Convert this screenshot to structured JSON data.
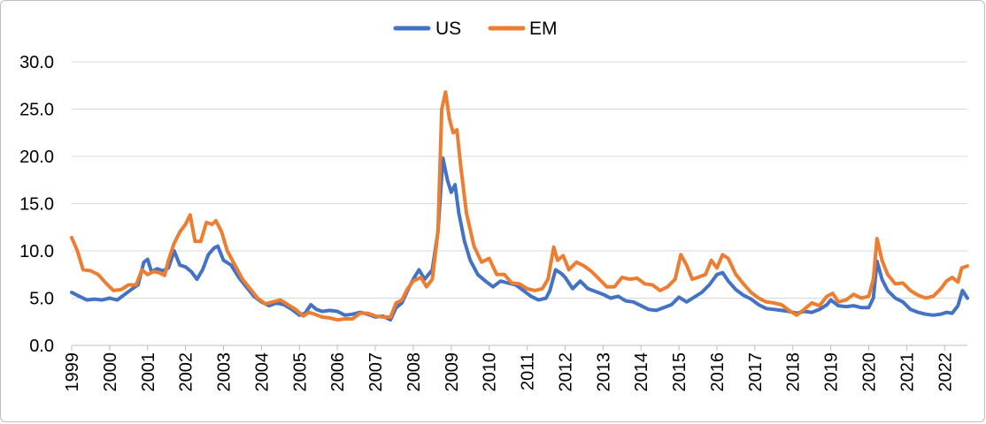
{
  "chart_data": {
    "type": "line",
    "title": "",
    "xlabel": "",
    "ylabel": "",
    "ylim": [
      0,
      30
    ],
    "y_ticks": [
      "0.0",
      "5.0",
      "10.0",
      "15.0",
      "20.0",
      "25.0",
      "30.0"
    ],
    "x_ticks": [
      "1999",
      "2000",
      "2001",
      "2002",
      "2003",
      "2004",
      "2005",
      "2006",
      "2007",
      "2008",
      "2009",
      "2010",
      "2011",
      "2012",
      "2013",
      "2014",
      "2015",
      "2016",
      "2017",
      "2018",
      "2019",
      "2020",
      "2021",
      "2022"
    ],
    "xlim": [
      1999.0,
      2022.6
    ],
    "grid": "horizontal",
    "legend_position": "top-center",
    "series": [
      {
        "name": "US",
        "color": "#4472C4",
        "points": [
          [
            1999.0,
            5.6
          ],
          [
            1999.2,
            5.2
          ],
          [
            1999.4,
            4.8
          ],
          [
            1999.6,
            4.9
          ],
          [
            1999.8,
            4.8
          ],
          [
            2000.0,
            5.0
          ],
          [
            2000.2,
            4.8
          ],
          [
            2000.4,
            5.4
          ],
          [
            2000.6,
            6.0
          ],
          [
            2000.75,
            6.4
          ],
          [
            2000.9,
            8.8
          ],
          [
            2001.0,
            9.1
          ],
          [
            2001.1,
            7.8
          ],
          [
            2001.25,
            8.1
          ],
          [
            2001.4,
            7.9
          ],
          [
            2001.55,
            8.2
          ],
          [
            2001.7,
            10.0
          ],
          [
            2001.85,
            8.5
          ],
          [
            2002.0,
            8.3
          ],
          [
            2002.15,
            7.8
          ],
          [
            2002.3,
            7.0
          ],
          [
            2002.45,
            8.0
          ],
          [
            2002.6,
            9.6
          ],
          [
            2002.75,
            10.3
          ],
          [
            2002.85,
            10.5
          ],
          [
            2003.0,
            9.0
          ],
          [
            2003.2,
            8.5
          ],
          [
            2003.4,
            7.2
          ],
          [
            2003.6,
            6.2
          ],
          [
            2003.8,
            5.2
          ],
          [
            2004.0,
            4.6
          ],
          [
            2004.2,
            4.2
          ],
          [
            2004.4,
            4.5
          ],
          [
            2004.6,
            4.3
          ],
          [
            2004.8,
            3.8
          ],
          [
            2005.0,
            3.2
          ],
          [
            2005.15,
            3.4
          ],
          [
            2005.3,
            4.3
          ],
          [
            2005.45,
            3.8
          ],
          [
            2005.6,
            3.6
          ],
          [
            2005.8,
            3.7
          ],
          [
            2006.0,
            3.6
          ],
          [
            2006.2,
            3.2
          ],
          [
            2006.4,
            3.3
          ],
          [
            2006.6,
            3.5
          ],
          [
            2006.8,
            3.3
          ],
          [
            2007.0,
            3.0
          ],
          [
            2007.2,
            3.1
          ],
          [
            2007.4,
            2.7
          ],
          [
            2007.55,
            4.0
          ],
          [
            2007.7,
            4.5
          ],
          [
            2007.85,
            5.8
          ],
          [
            2008.0,
            7.0
          ],
          [
            2008.15,
            8.0
          ],
          [
            2008.3,
            7.0
          ],
          [
            2008.5,
            8.0
          ],
          [
            2008.65,
            12.0
          ],
          [
            2008.78,
            19.8
          ],
          [
            2008.9,
            17.5
          ],
          [
            2009.0,
            16.2
          ],
          [
            2009.1,
            17.0
          ],
          [
            2009.2,
            14.0
          ],
          [
            2009.35,
            11.0
          ],
          [
            2009.5,
            9.0
          ],
          [
            2009.7,
            7.5
          ],
          [
            2009.9,
            6.8
          ],
          [
            2010.1,
            6.2
          ],
          [
            2010.3,
            6.8
          ],
          [
            2010.5,
            6.6
          ],
          [
            2010.7,
            6.4
          ],
          [
            2010.9,
            5.8
          ],
          [
            2011.1,
            5.2
          ],
          [
            2011.3,
            4.8
          ],
          [
            2011.5,
            5.0
          ],
          [
            2011.6,
            5.8
          ],
          [
            2011.75,
            8.0
          ],
          [
            2011.9,
            7.6
          ],
          [
            2012.0,
            7.2
          ],
          [
            2012.2,
            6.0
          ],
          [
            2012.4,
            6.8
          ],
          [
            2012.6,
            6.0
          ],
          [
            2012.8,
            5.7
          ],
          [
            2013.0,
            5.4
          ],
          [
            2013.2,
            5.0
          ],
          [
            2013.4,
            5.2
          ],
          [
            2013.6,
            4.7
          ],
          [
            2013.8,
            4.6
          ],
          [
            2014.0,
            4.2
          ],
          [
            2014.2,
            3.8
          ],
          [
            2014.4,
            3.7
          ],
          [
            2014.6,
            4.0
          ],
          [
            2014.8,
            4.3
          ],
          [
            2015.0,
            5.1
          ],
          [
            2015.2,
            4.6
          ],
          [
            2015.4,
            5.1
          ],
          [
            2015.6,
            5.6
          ],
          [
            2015.8,
            6.4
          ],
          [
            2016.0,
            7.5
          ],
          [
            2016.15,
            7.7
          ],
          [
            2016.3,
            6.8
          ],
          [
            2016.5,
            5.9
          ],
          [
            2016.7,
            5.3
          ],
          [
            2016.9,
            4.9
          ],
          [
            2017.1,
            4.3
          ],
          [
            2017.3,
            3.9
          ],
          [
            2017.5,
            3.8
          ],
          [
            2017.7,
            3.7
          ],
          [
            2017.9,
            3.6
          ],
          [
            2018.1,
            3.4
          ],
          [
            2018.3,
            3.6
          ],
          [
            2018.5,
            3.5
          ],
          [
            2018.7,
            3.8
          ],
          [
            2018.9,
            4.3
          ],
          [
            2019.0,
            4.8
          ],
          [
            2019.2,
            4.2
          ],
          [
            2019.4,
            4.1
          ],
          [
            2019.6,
            4.2
          ],
          [
            2019.8,
            4.0
          ],
          [
            2020.0,
            4.0
          ],
          [
            2020.12,
            5.0
          ],
          [
            2020.22,
            8.9
          ],
          [
            2020.35,
            7.0
          ],
          [
            2020.5,
            5.8
          ],
          [
            2020.7,
            5.0
          ],
          [
            2020.9,
            4.6
          ],
          [
            2021.1,
            3.8
          ],
          [
            2021.3,
            3.5
          ],
          [
            2021.5,
            3.3
          ],
          [
            2021.7,
            3.2
          ],
          [
            2021.9,
            3.3
          ],
          [
            2022.05,
            3.5
          ],
          [
            2022.2,
            3.4
          ],
          [
            2022.35,
            4.2
          ],
          [
            2022.47,
            5.8
          ],
          [
            2022.6,
            5.0
          ]
        ]
      },
      {
        "name": "EM",
        "color": "#ED7D31",
        "points": [
          [
            1999.0,
            11.4
          ],
          [
            1999.15,
            10.0
          ],
          [
            1999.3,
            8.0
          ],
          [
            1999.5,
            7.9
          ],
          [
            1999.7,
            7.5
          ],
          [
            1999.9,
            6.6
          ],
          [
            2000.1,
            5.8
          ],
          [
            2000.3,
            5.9
          ],
          [
            2000.5,
            6.4
          ],
          [
            2000.7,
            6.4
          ],
          [
            2000.85,
            8.0
          ],
          [
            2001.0,
            7.5
          ],
          [
            2001.15,
            7.8
          ],
          [
            2001.3,
            7.7
          ],
          [
            2001.45,
            7.4
          ],
          [
            2001.55,
            9.0
          ],
          [
            2001.7,
            10.8
          ],
          [
            2001.85,
            12.0
          ],
          [
            2002.0,
            12.8
          ],
          [
            2002.12,
            13.8
          ],
          [
            2002.25,
            11.0
          ],
          [
            2002.4,
            11.0
          ],
          [
            2002.55,
            13.0
          ],
          [
            2002.7,
            12.8
          ],
          [
            2002.8,
            13.2
          ],
          [
            2002.95,
            12.0
          ],
          [
            2003.1,
            10.0
          ],
          [
            2003.3,
            8.5
          ],
          [
            2003.5,
            7.0
          ],
          [
            2003.7,
            6.0
          ],
          [
            2003.9,
            5.0
          ],
          [
            2004.1,
            4.4
          ],
          [
            2004.3,
            4.6
          ],
          [
            2004.5,
            4.8
          ],
          [
            2004.7,
            4.3
          ],
          [
            2004.9,
            3.8
          ],
          [
            2005.1,
            3.1
          ],
          [
            2005.25,
            3.5
          ],
          [
            2005.4,
            3.3
          ],
          [
            2005.6,
            3.0
          ],
          [
            2005.8,
            2.9
          ],
          [
            2006.0,
            2.7
          ],
          [
            2006.2,
            2.8
          ],
          [
            2006.4,
            2.8
          ],
          [
            2006.6,
            3.4
          ],
          [
            2006.8,
            3.4
          ],
          [
            2007.0,
            3.1
          ],
          [
            2007.2,
            3.0
          ],
          [
            2007.4,
            3.0
          ],
          [
            2007.55,
            4.5
          ],
          [
            2007.7,
            4.8
          ],
          [
            2007.85,
            6.0
          ],
          [
            2008.0,
            6.8
          ],
          [
            2008.2,
            7.2
          ],
          [
            2008.35,
            6.2
          ],
          [
            2008.5,
            7.0
          ],
          [
            2008.65,
            12.0
          ],
          [
            2008.75,
            25.0
          ],
          [
            2008.85,
            26.8
          ],
          [
            2008.95,
            24.0
          ],
          [
            2009.05,
            22.5
          ],
          [
            2009.15,
            22.8
          ],
          [
            2009.25,
            19.0
          ],
          [
            2009.4,
            14.0
          ],
          [
            2009.6,
            10.5
          ],
          [
            2009.8,
            8.8
          ],
          [
            2010.0,
            9.2
          ],
          [
            2010.2,
            7.5
          ],
          [
            2010.4,
            7.5
          ],
          [
            2010.6,
            6.6
          ],
          [
            2010.8,
            6.5
          ],
          [
            2011.0,
            6.0
          ],
          [
            2011.2,
            5.8
          ],
          [
            2011.4,
            6.0
          ],
          [
            2011.55,
            7.0
          ],
          [
            2011.7,
            10.4
          ],
          [
            2011.8,
            9.0
          ],
          [
            2011.95,
            9.5
          ],
          [
            2012.1,
            8.0
          ],
          [
            2012.3,
            8.8
          ],
          [
            2012.5,
            8.4
          ],
          [
            2012.7,
            7.8
          ],
          [
            2012.9,
            7.0
          ],
          [
            2013.1,
            6.2
          ],
          [
            2013.3,
            6.2
          ],
          [
            2013.5,
            7.2
          ],
          [
            2013.7,
            7.0
          ],
          [
            2013.9,
            7.1
          ],
          [
            2014.1,
            6.5
          ],
          [
            2014.3,
            6.4
          ],
          [
            2014.5,
            5.8
          ],
          [
            2014.7,
            6.2
          ],
          [
            2014.9,
            7.0
          ],
          [
            2015.05,
            9.6
          ],
          [
            2015.2,
            8.5
          ],
          [
            2015.35,
            7.0
          ],
          [
            2015.5,
            7.2
          ],
          [
            2015.7,
            7.5
          ],
          [
            2015.85,
            9.0
          ],
          [
            2016.0,
            8.2
          ],
          [
            2016.15,
            9.6
          ],
          [
            2016.3,
            9.2
          ],
          [
            2016.5,
            7.5
          ],
          [
            2016.7,
            6.5
          ],
          [
            2016.9,
            5.6
          ],
          [
            2017.1,
            5.0
          ],
          [
            2017.3,
            4.6
          ],
          [
            2017.5,
            4.5
          ],
          [
            2017.7,
            4.3
          ],
          [
            2017.9,
            3.7
          ],
          [
            2018.1,
            3.2
          ],
          [
            2018.3,
            3.8
          ],
          [
            2018.5,
            4.5
          ],
          [
            2018.7,
            4.2
          ],
          [
            2018.9,
            5.2
          ],
          [
            2019.05,
            5.5
          ],
          [
            2019.2,
            4.6
          ],
          [
            2019.4,
            4.8
          ],
          [
            2019.6,
            5.4
          ],
          [
            2019.8,
            5.0
          ],
          [
            2020.0,
            5.2
          ],
          [
            2020.12,
            7.0
          ],
          [
            2020.22,
            11.3
          ],
          [
            2020.35,
            9.0
          ],
          [
            2020.5,
            7.5
          ],
          [
            2020.7,
            6.5
          ],
          [
            2020.9,
            6.6
          ],
          [
            2021.1,
            5.8
          ],
          [
            2021.3,
            5.3
          ],
          [
            2021.5,
            5.0
          ],
          [
            2021.7,
            5.2
          ],
          [
            2021.9,
            6.0
          ],
          [
            2022.05,
            6.8
          ],
          [
            2022.2,
            7.2
          ],
          [
            2022.35,
            6.7
          ],
          [
            2022.45,
            8.2
          ],
          [
            2022.6,
            8.4
          ]
        ]
      }
    ]
  }
}
